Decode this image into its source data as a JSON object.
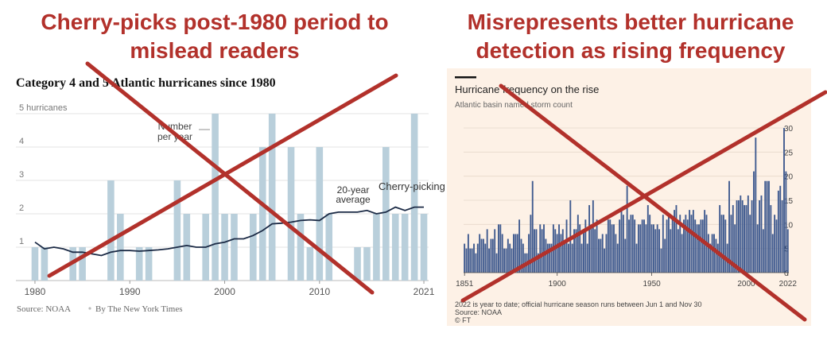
{
  "headlines": {
    "left": [
      "Cherry-picks post-1980 period to",
      "mislead readers"
    ],
    "right": [
      "Misrepresents better hurricane",
      "detection as rising frequency"
    ]
  },
  "colors": {
    "headline": "#b2312b",
    "cross": "#b2312b",
    "nyt_bar": "#b9cfdb",
    "nyt_line": "#1b2a45",
    "ft_bg": "#fdf1e6",
    "ft_bar": "#3f5a8f"
  },
  "nyt_chart": {
    "title": "Category 4 and 5 Atlantic hurricanes since 1980",
    "y_tick_labels": [
      "5 hurricanes",
      "4",
      "3",
      "2",
      "1"
    ],
    "x_tick_labels": [
      "1980",
      "1990",
      "2000",
      "2010",
      "2021"
    ],
    "annotation_bars": [
      "Number",
      "per year"
    ],
    "annotation_avg": [
      "20-year",
      "average"
    ],
    "annotation_pick": "Cherry-picking",
    "source": "Source: NOAA",
    "byline": "By The New York Times"
  },
  "ft_chart": {
    "title": "Hurricane frequency on the rise",
    "subtitle": "Atlantic basin named storm count",
    "y_tick_labels": [
      "30",
      "25",
      "20",
      "15",
      "10",
      "5",
      "0"
    ],
    "x_tick_labels": [
      "1851",
      "1900",
      "1950",
      "2000",
      "2022"
    ],
    "note": "2022 is year to date; official hurricane season runs between Jun 1 and Nov 30",
    "source": "Source: NOAA",
    "credit": "© FT"
  },
  "chart_data": [
    {
      "type": "bar",
      "title": "Category 4 and 5 Atlantic hurricanes since 1980",
      "x_start": 1980,
      "x_end": 2021,
      "ylim": [
        0,
        5
      ],
      "ylabel": "hurricanes",
      "grid": true,
      "series": [
        {
          "name": "Number per year",
          "x": [
            1980,
            1981,
            1982,
            1983,
            1984,
            1985,
            1986,
            1987,
            1988,
            1989,
            1990,
            1991,
            1992,
            1993,
            1994,
            1995,
            1996,
            1997,
            1998,
            1999,
            2000,
            2001,
            2002,
            2003,
            2004,
            2005,
            2006,
            2007,
            2008,
            2009,
            2010,
            2011,
            2012,
            2013,
            2014,
            2015,
            2016,
            2017,
            2018,
            2019,
            2020,
            2021
          ],
          "values": [
            1,
            1,
            0,
            0,
            1,
            1,
            0,
            0,
            3,
            2,
            0,
            1,
            1,
            0,
            0,
            3,
            2,
            0,
            2,
            5,
            2,
            2,
            0,
            2,
            4,
            5,
            0,
            4,
            2,
            1,
            4,
            2,
            0,
            0,
            1,
            1,
            2,
            4,
            2,
            2,
            5,
            2
          ]
        },
        {
          "name": "20-year average",
          "x": [
            1980,
            1981,
            1982,
            1983,
            1984,
            1985,
            1986,
            1987,
            1988,
            1989,
            1990,
            1991,
            1992,
            1993,
            1994,
            1995,
            1996,
            1997,
            1998,
            1999,
            2000,
            2001,
            2002,
            2003,
            2004,
            2005,
            2006,
            2007,
            2008,
            2009,
            2010,
            2011,
            2012,
            2013,
            2014,
            2015,
            2016,
            2017,
            2018,
            2019,
            2020,
            2021
          ],
          "values": [
            1.15,
            0.95,
            1.0,
            0.95,
            0.85,
            0.85,
            0.8,
            0.75,
            0.85,
            0.9,
            0.9,
            0.88,
            0.9,
            0.92,
            0.95,
            1.0,
            1.05,
            1.0,
            1.0,
            1.1,
            1.15,
            1.25,
            1.25,
            1.35,
            1.5,
            1.7,
            1.72,
            1.75,
            1.8,
            1.82,
            1.8,
            2.0,
            2.05,
            2.05,
            2.05,
            2.1,
            2.0,
            2.05,
            2.2,
            2.1,
            2.2,
            2.2
          ]
        }
      ]
    },
    {
      "type": "bar",
      "title": "Hurricane frequency on the rise",
      "subtitle": "Atlantic basin named storm count",
      "x_start": 1851,
      "x_end": 2022,
      "ylim": [
        0,
        30
      ],
      "grid": true,
      "series": [
        {
          "name": "",
          "values": [
            6,
            5,
            8,
            5,
            5,
            6,
            4,
            6,
            8,
            7,
            7,
            6,
            9,
            5,
            7,
            7,
            9,
            4,
            10,
            10,
            8,
            5,
            5,
            7,
            6,
            5,
            8,
            8,
            8,
            11,
            7,
            6,
            4,
            4,
            8,
            12,
            19,
            9,
            9,
            4,
            10,
            9,
            10,
            7,
            6,
            6,
            6,
            10,
            9,
            8,
            10,
            8,
            9,
            6,
            11,
            6,
            15,
            6,
            9,
            9,
            12,
            10,
            6,
            9,
            11,
            6,
            14,
            10,
            15,
            9,
            11,
            7,
            7,
            8,
            5,
            8,
            11,
            11,
            10,
            10,
            8,
            6,
            11,
            13,
            12,
            7,
            18,
            11,
            12,
            12,
            11,
            6,
            10,
            10,
            11,
            11,
            10,
            14,
            12,
            10,
            10,
            9,
            10,
            9,
            5,
            12,
            7,
            11,
            12,
            9,
            11,
            13,
            14,
            9,
            12,
            8,
            11,
            12,
            11,
            13,
            12,
            13,
            11,
            10,
            10,
            11,
            11,
            13,
            12,
            8,
            6,
            8,
            8,
            7,
            6,
            14,
            12,
            12,
            11,
            6,
            19,
            12,
            14,
            10,
            15,
            15,
            16,
            15,
            14,
            14,
            16,
            12,
            15,
            21,
            28,
            10,
            15,
            16,
            9,
            19,
            19,
            19,
            14,
            8,
            12,
            11,
            17,
            18,
            15,
            30,
            21,
            9
          ]
        }
      ]
    }
  ]
}
